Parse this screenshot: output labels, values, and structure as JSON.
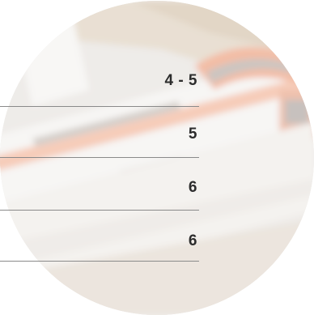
{
  "values": [
    {
      "label": "4 - 5"
    },
    {
      "label": "5"
    },
    {
      "label": "6"
    },
    {
      "label": "6"
    }
  ],
  "colors": {
    "accent": "#e8703a",
    "text": "#2c2c2c",
    "divider": "#8a8a8a"
  }
}
